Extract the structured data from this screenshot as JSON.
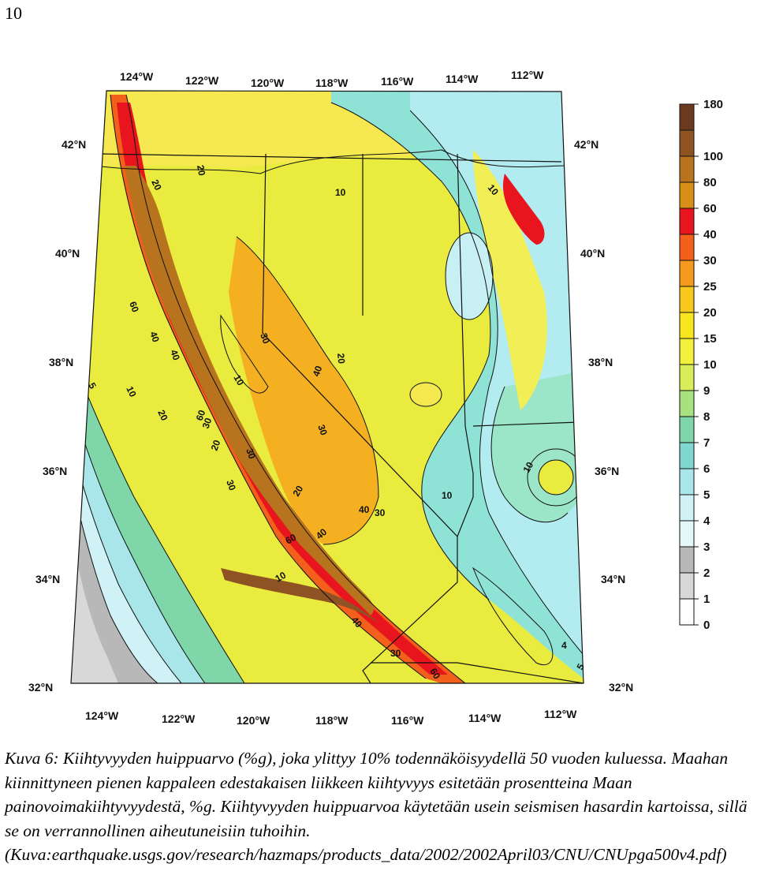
{
  "page": {
    "number": "10"
  },
  "map": {
    "top_longitudes": [
      "124°W",
      "122°W",
      "120°W",
      "118°W",
      "116°W",
      "114°W",
      "112°W"
    ],
    "bottom_longitudes": [
      "124°W",
      "122°W",
      "120°W",
      "118°W",
      "116°W",
      "114°W",
      "112°W"
    ],
    "left_latitudes": [
      "42°N",
      "40°N",
      "38°N",
      "36°N",
      "34°N",
      "32°N"
    ],
    "right_latitudes": [
      "42°N",
      "40°N",
      "38°N",
      "36°N",
      "34°N",
      "32°N"
    ],
    "contour_labels": [
      "20",
      "20",
      "10",
      "10",
      "60",
      "40",
      "40",
      "10",
      "5",
      "10",
      "20",
      "30",
      "30",
      "20",
      "40",
      "10",
      "60",
      "30",
      "20",
      "30",
      "30",
      "40",
      "30",
      "20",
      "60",
      "40",
      "10",
      "10",
      "40",
      "30",
      "4",
      "5",
      "60"
    ]
  },
  "legend": {
    "ticks": [
      "180",
      "100",
      "80",
      "60",
      "40",
      "30",
      "25",
      "20",
      "15",
      "10",
      "9",
      "8",
      "7",
      "6",
      "5",
      "4",
      "3",
      "2",
      "1",
      "0"
    ],
    "colors": [
      "#6b3a1e",
      "#8f5223",
      "#b8731f",
      "#d98f17",
      "#e8141e",
      "#f2601c",
      "#f59a1c",
      "#f7c81e",
      "#f9e51e",
      "#f2f03a",
      "#d8ee58",
      "#a8e280",
      "#7fd6a8",
      "#7fd8d0",
      "#a8e6ea",
      "#d0f2f6",
      "#e4f8fa",
      "#b8b8b8",
      "#d8d8d8",
      "#ffffff"
    ]
  },
  "caption": {
    "text": "Kuva 6: Kiihtyvyyden huippuarvo (%g), joka ylittyy 10% todennäköisyydellä 50 vuoden kuluessa. Maahan kiinnittyneen pienen kappaleen edestakaisen liikkeen kiihtyvyys esitetään prosentteina Maan painovoimakiihtyvyydestä, %g. Kiihtyvyyden huippuarvoa käytetään usein seismisen hasardin kartoissa, sillä se on verrannollinen aiheutuneisiin tuhoihin.",
    "source": "(Kuva:earthquake.usgs.gov/research/hazmaps/products_data/2002/2002April03/CNU/CNUpga500v4.pdf)"
  }
}
